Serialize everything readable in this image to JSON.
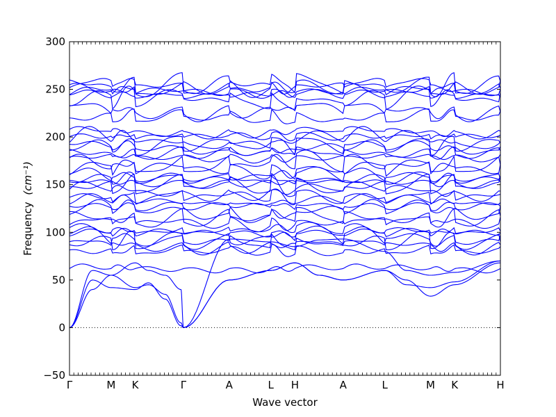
{
  "chart_data": {
    "type": "line",
    "title": "",
    "xlabel": "Wave vector",
    "ylabel": "Frequency",
    "ylabel_unit": "(cm⁻¹)",
    "ylim": [
      -50,
      300
    ],
    "yticks": [
      -50,
      0,
      50,
      100,
      150,
      200,
      250,
      300
    ],
    "xlim": [
      0,
      11
    ],
    "xticks": [
      {
        "label": "Γ",
        "x": 0
      },
      {
        "label": "M",
        "x": 1
      },
      {
        "label": "K",
        "x": 1.58
      },
      {
        "label": "Γ",
        "x": 2.74
      },
      {
        "label": "A",
        "x": 3.84
      },
      {
        "label": "L",
        "x": 4.84
      },
      {
        "label": "H",
        "x": 5.42
      },
      {
        "label": "A",
        "x": 6.58
      },
      {
        "label": "L",
        "x": 7.58
      },
      {
        "label": "M",
        "x": 8.68
      },
      {
        "label": "K",
        "x": 9.26
      },
      {
        "label": "H",
        "x": 10.36
      }
    ],
    "x_end": 10.36,
    "zero_line": true,
    "grid": false,
    "series_color": "#0000ff",
    "acoustic_branches": [
      {
        "y": [
          0,
          60,
          55,
          42,
          45,
          35,
          5,
          0,
          50,
          60,
          68,
          55,
          50,
          60,
          50,
          33,
          45,
          68
        ]
      },
      {
        "y": [
          0,
          50,
          42,
          40,
          47,
          30,
          2,
          0,
          50,
          60,
          68,
          55,
          50,
          60,
          45,
          42,
          48,
          70
        ]
      },
      {
        "y": [
          0,
          40,
          55,
          68,
          60,
          55,
          40,
          0,
          93,
          90,
          85,
          92,
          93,
          80,
          60,
          55,
          58,
          70
        ]
      }
    ],
    "optical_band_levels": [
      62,
      80,
      86,
      90,
      95,
      100,
      103,
      110,
      115,
      122,
      128,
      133,
      138,
      143,
      148,
      152,
      156,
      160,
      167,
      172,
      178,
      183,
      188,
      193,
      197,
      201,
      205,
      220,
      228,
      240,
      245,
      248,
      250,
      253,
      255
    ]
  }
}
